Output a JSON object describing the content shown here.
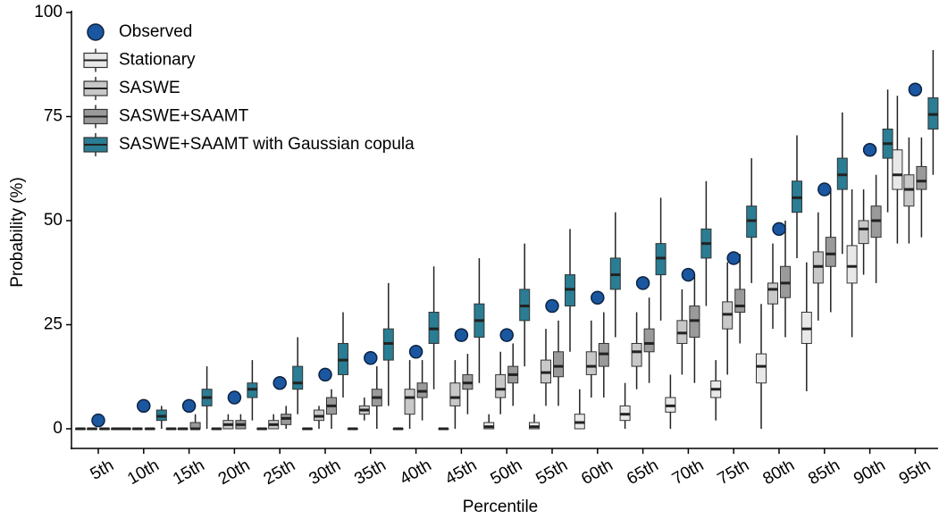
{
  "chart_data": {
    "type": "boxplot",
    "x_label": "Percentile",
    "y_label": "Probability (%)",
    "categories": [
      "5th",
      "10th",
      "15th",
      "20th",
      "25th",
      "30th",
      "35th",
      "40th",
      "45th",
      "50th",
      "55th",
      "60th",
      "65th",
      "70th",
      "75th",
      "80th",
      "85th",
      "90th",
      "95th"
    ],
    "ylim": [
      0,
      100
    ],
    "yticks": [
      0,
      25,
      50,
      75,
      100
    ],
    "legend": "top-left",
    "observed": {
      "name": "Observed",
      "color": "#1a57a0",
      "values": [
        2,
        5.5,
        5.5,
        7.5,
        11,
        13,
        17,
        18.5,
        22.5,
        22.5,
        29.5,
        31.5,
        35,
        37,
        41,
        48,
        57.5,
        67,
        81.5
      ]
    },
    "series": [
      {
        "name": "Stationary",
        "color": "#e8e8e8",
        "values": [
          [
            0,
            0,
            0,
            0,
            0
          ],
          [
            0,
            0,
            0,
            0,
            0
          ],
          [
            0,
            0,
            0,
            0,
            0
          ],
          [
            0,
            0,
            0,
            0,
            0
          ],
          [
            0,
            0,
            0,
            0,
            0
          ],
          [
            0,
            0,
            0,
            0,
            0
          ],
          [
            0,
            0,
            0,
            0,
            0
          ],
          [
            0,
            0,
            0,
            0,
            0
          ],
          [
            0,
            0,
            0,
            0,
            0
          ],
          [
            0,
            0,
            0.5,
            1.5,
            3.5
          ],
          [
            0,
            0,
            0.5,
            1.5,
            3.5
          ],
          [
            0,
            0,
            1.5,
            3.5,
            9.5
          ],
          [
            0,
            2,
            3.5,
            5.5,
            11
          ],
          [
            0,
            4,
            5.5,
            7.5,
            13
          ],
          [
            2,
            7.5,
            9.5,
            11.5,
            16.5
          ],
          [
            0,
            11,
            15,
            18,
            30
          ],
          [
            9,
            20.5,
            24,
            28,
            40
          ],
          [
            22,
            35,
            39,
            44,
            57.5
          ],
          [
            44.5,
            57.5,
            61,
            67,
            80
          ]
        ]
      },
      {
        "name": "SASWE",
        "color": "#c8c8c8",
        "values": [
          [
            0,
            0,
            0,
            0,
            0
          ],
          [
            0,
            0,
            0,
            0,
            0
          ],
          [
            0,
            0,
            0,
            0,
            0
          ],
          [
            0,
            0,
            1,
            2,
            3.5
          ],
          [
            0,
            0,
            1,
            2,
            3.5
          ],
          [
            0,
            2,
            3,
            4.5,
            5.5
          ],
          [
            2,
            3.5,
            4.5,
            5.5,
            7.5
          ],
          [
            0,
            3.5,
            7.5,
            9.5,
            16.5
          ],
          [
            0,
            5.5,
            7.5,
            11,
            16.5
          ],
          [
            3.5,
            7.5,
            9.5,
            13,
            18.5
          ],
          [
            5.5,
            11,
            13.5,
            16.5,
            24
          ],
          [
            7.5,
            13,
            15,
            18.5,
            26
          ],
          [
            9.5,
            15,
            18.5,
            20.5,
            28
          ],
          [
            13,
            20.5,
            23,
            26,
            33.5
          ],
          [
            13,
            24,
            27.5,
            30.5,
            40
          ],
          [
            24,
            30,
            33.5,
            35,
            44.5
          ],
          [
            26,
            35,
            39,
            42.5,
            52
          ],
          [
            37,
            44.5,
            48,
            50,
            57.5
          ],
          [
            44.5,
            53.5,
            57.5,
            61,
            70
          ]
        ]
      },
      {
        "name": "SASWE+SAAMT",
        "color": "#9a9a9a",
        "values": [
          [
            0,
            0,
            0,
            0,
            0
          ],
          [
            0,
            0,
            0,
            0,
            0
          ],
          [
            0,
            0,
            0,
            1.5,
            3.5
          ],
          [
            0,
            0,
            1,
            2,
            3.5
          ],
          [
            0,
            1,
            2.5,
            3.5,
            5.5
          ],
          [
            0,
            3.5,
            5.5,
            7.5,
            9.5
          ],
          [
            0,
            5.5,
            7.5,
            9.5,
            15
          ],
          [
            2,
            7.5,
            9,
            11,
            16.5
          ],
          [
            3.5,
            9.5,
            11,
            13,
            18
          ],
          [
            5.5,
            11,
            13,
            15,
            20.5
          ],
          [
            5.5,
            12.5,
            15,
            18.5,
            26
          ],
          [
            7.5,
            15,
            18,
            20.5,
            28
          ],
          [
            11,
            18.5,
            20.5,
            24,
            31.5
          ],
          [
            11,
            22,
            26,
            29.5,
            37
          ],
          [
            20.5,
            28,
            29.5,
            33.5,
            42
          ],
          [
            22,
            31.5,
            35,
            39,
            50
          ],
          [
            28,
            39,
            42,
            46,
            57.5
          ],
          [
            35,
            46,
            50,
            53.5,
            61
          ],
          [
            46,
            57.5,
            59.5,
            63,
            70
          ]
        ]
      },
      {
        "name": "SASWE+SAAMT with Gaussian copula",
        "color": "#2a7d93",
        "values": [
          [
            0,
            0,
            0,
            0,
            0
          ],
          [
            0,
            2,
            3,
            4.5,
            5.5
          ],
          [
            0,
            5.5,
            7.5,
            9.5,
            15
          ],
          [
            2,
            7.5,
            9.5,
            11,
            16.5
          ],
          [
            3.5,
            9.5,
            11,
            15,
            22
          ],
          [
            7.5,
            13,
            16.5,
            20.5,
            28
          ],
          [
            5.5,
            16.5,
            20.5,
            24,
            35
          ],
          [
            9.5,
            20.5,
            24,
            28,
            39
          ],
          [
            11,
            22,
            26,
            30,
            41
          ],
          [
            15,
            26,
            29.5,
            33.5,
            44.5
          ],
          [
            18.5,
            29.5,
            33.5,
            37,
            48
          ],
          [
            22,
            33.5,
            37,
            41,
            52
          ],
          [
            26,
            37,
            41,
            44.5,
            55.5
          ],
          [
            29.5,
            41,
            44.5,
            48,
            59.5
          ],
          [
            35,
            46,
            50,
            53.5,
            65
          ],
          [
            41,
            52,
            55.5,
            59.5,
            70.5
          ],
          [
            42,
            57.5,
            61,
            65,
            76
          ],
          [
            52,
            65,
            68.5,
            72,
            81.5
          ],
          [
            61,
            72,
            75.5,
            79.5,
            91
          ]
        ]
      }
    ]
  }
}
